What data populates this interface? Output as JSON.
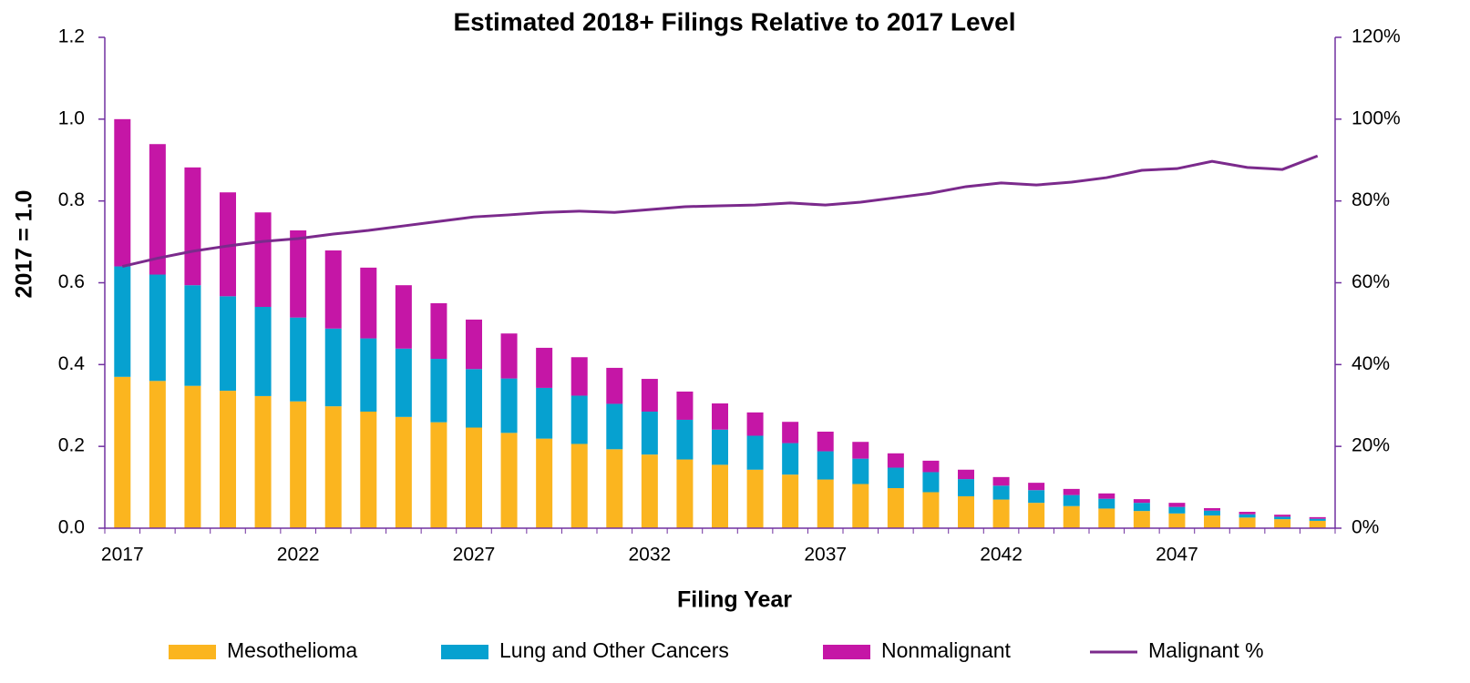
{
  "chart_data": {
    "type": "bar",
    "stacked": true,
    "title": "Estimated 2018+ Filings Relative to 2017 Level",
    "y_label": "2017  = 1.0",
    "x_label": "Filing Year",
    "categories": [
      "2017",
      null,
      null,
      null,
      null,
      "2022",
      null,
      null,
      null,
      null,
      "2027",
      null,
      null,
      null,
      null,
      "2032",
      null,
      null,
      null,
      null,
      "2037",
      null,
      null,
      null,
      null,
      "2042",
      null,
      null,
      null,
      null,
      "2047",
      null,
      null,
      null,
      null
    ],
    "series": [
      {
        "name": "Mesothelioma",
        "color": "#fbb51f",
        "values": [
          0.37,
          0.36,
          0.348,
          0.336,
          0.323,
          0.31,
          0.298,
          0.285,
          0.272,
          0.259,
          0.246,
          0.233,
          0.219,
          0.206,
          0.193,
          0.18,
          0.168,
          0.155,
          0.143,
          0.131,
          0.119,
          0.108,
          0.098,
          0.088,
          0.078,
          0.07,
          0.062,
          0.054,
          0.048,
          0.042,
          0.036,
          0.031,
          0.026,
          0.022,
          0.018
        ]
      },
      {
        "name": "Lung and Other Cancers",
        "color": "#06a1d0",
        "values": [
          0.27,
          0.26,
          0.246,
          0.231,
          0.218,
          0.205,
          0.19,
          0.179,
          0.167,
          0.155,
          0.143,
          0.133,
          0.124,
          0.118,
          0.111,
          0.105,
          0.097,
          0.086,
          0.083,
          0.077,
          0.069,
          0.062,
          0.05,
          0.049,
          0.042,
          0.034,
          0.031,
          0.027,
          0.024,
          0.02,
          0.016,
          0.012,
          0.008,
          0.006,
          0.005
        ]
      },
      {
        "name": "Nonmalignant",
        "color": "#c516a6",
        "values": [
          0.36,
          0.319,
          0.288,
          0.254,
          0.231,
          0.213,
          0.191,
          0.173,
          0.155,
          0.136,
          0.121,
          0.11,
          0.098,
          0.094,
          0.088,
          0.08,
          0.069,
          0.064,
          0.057,
          0.052,
          0.048,
          0.041,
          0.035,
          0.028,
          0.023,
          0.021,
          0.018,
          0.015,
          0.013,
          0.009,
          0.01,
          0.006,
          0.006,
          0.005,
          0.004
        ]
      },
      {
        "name": "Malignant %",
        "color": "#7b2a8c",
        "type": "line",
        "axis": "y2",
        "values": [
          64,
          66,
          67.7,
          69,
          70.1,
          70.8,
          71.9,
          72.8,
          73.9,
          75,
          76.1,
          76.6,
          77.2,
          77.5,
          77.2,
          77.9,
          78.6,
          78.8,
          79,
          79.5,
          79,
          79.7,
          80.8,
          81.9,
          83.5,
          84.4,
          83.9,
          84.6,
          85.7,
          87.5,
          87.9,
          89.7,
          88.2,
          87.7,
          91
        ]
      }
    ],
    "ylim": [
      0,
      1.2
    ],
    "yticks": [
      {
        "value": 0,
        "label": "0.0"
      },
      0.2,
      0.4,
      0.6,
      0.8,
      {
        "value": 1,
        "label": "1.0"
      },
      1.2
    ],
    "y2lim": [
      0,
      120
    ],
    "y2ticks": [
      {
        "value": 0,
        "label": "0%"
      },
      {
        "value": 20,
        "label": "20%"
      },
      {
        "value": 40,
        "label": "40%"
      },
      {
        "value": 60,
        "label": "60%"
      },
      {
        "value": 80,
        "label": "80%"
      },
      {
        "value": 100,
        "label": "100%"
      },
      {
        "value": 120,
        "label": "120%"
      }
    ],
    "grid": false,
    "axis_color": "#7030a0",
    "legend": "bottom"
  }
}
